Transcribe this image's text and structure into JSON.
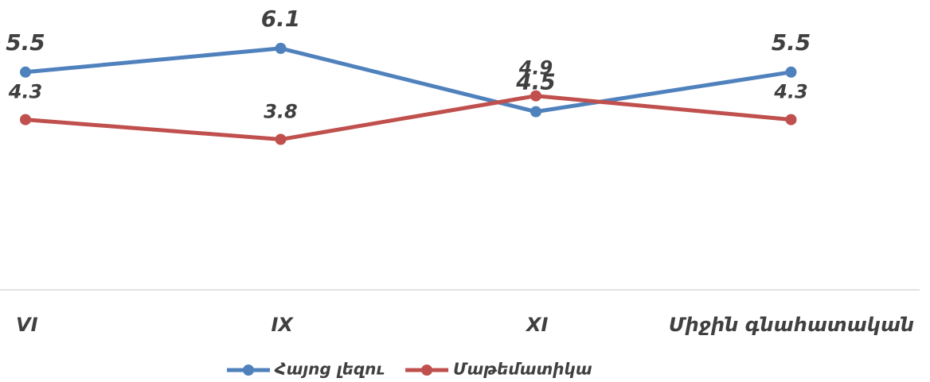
{
  "chart_data": {
    "type": "line",
    "categories": [
      "VI",
      "IX",
      "XI",
      "Միջին գնահատական"
    ],
    "series": [
      {
        "name": "Հայոց լեզու",
        "color": "#4f81bd",
        "values": [
          5.5,
          6.1,
          4.5,
          5.5
        ]
      },
      {
        "name": "Մաթեմատիկա",
        "color": "#c0504d",
        "values": [
          4.3,
          3.8,
          4.9,
          4.3
        ]
      }
    ],
    "ylim": [
      0,
      7
    ],
    "legend": "bottom"
  }
}
